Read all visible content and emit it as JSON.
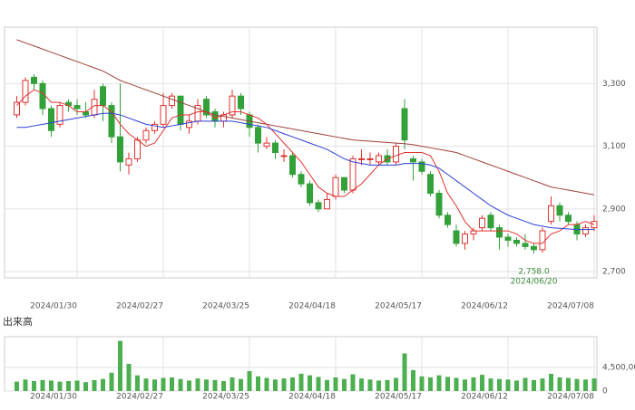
{
  "chart_data": [
    {
      "type": "candlestick",
      "categories": [
        null,
        null,
        null,
        null,
        null,
        null,
        null,
        "2024/01/30",
        null,
        null,
        null,
        null,
        null,
        null,
        null,
        null,
        null,
        "2024/02/27",
        null,
        null,
        null,
        null,
        null,
        null,
        null,
        null,
        null,
        "2024/03/25",
        null,
        null,
        null,
        null,
        null,
        null,
        null,
        null,
        null,
        "2024/04/18",
        null,
        null,
        null,
        null,
        null,
        null,
        null,
        null,
        null,
        "2024/05/17",
        null,
        null,
        null,
        null,
        null,
        null,
        null,
        null,
        null,
        "2024/06/12",
        null,
        null,
        null,
        null,
        null,
        null,
        null,
        null,
        null,
        "2024/07/08"
      ],
      "open": [
        3200,
        3240,
        3320,
        3300,
        3220,
        3170,
        3240,
        3230,
        3210,
        3200,
        3290,
        3230,
        3130,
        3040,
        3060,
        3120,
        3150,
        3170,
        3230,
        3260,
        3160,
        3180,
        3250,
        3210,
        3180,
        3200,
        3260,
        3200,
        3160,
        3100,
        3110,
        3070,
        3070,
        3010,
        2980,
        2920,
        2900,
        2940,
        3000,
        2960,
        3060,
        3060,
        3050,
        3070,
        3050,
        3220,
        3060,
        3050,
        3010,
        2950,
        2880,
        2830,
        2790,
        2820,
        2840,
        2880,
        2840,
        2810,
        2800,
        2790,
        2780,
        2770,
        2860,
        2910,
        2880,
        2850,
        2820,
        2840
      ],
      "high": [
        3260,
        3320,
        3330,
        3310,
        3230,
        3240,
        3250,
        3250,
        3240,
        3280,
        3300,
        3240,
        3300,
        3080,
        3130,
        3160,
        3180,
        3270,
        3270,
        3260,
        3200,
        3250,
        3260,
        3220,
        3210,
        3280,
        3270,
        3210,
        3170,
        3130,
        3120,
        3090,
        3080,
        3020,
        2990,
        2930,
        2950,
        3010,
        3000,
        3070,
        3090,
        3080,
        3080,
        3090,
        3110,
        3250,
        3070,
        3060,
        3020,
        2960,
        2890,
        2850,
        2830,
        2840,
        2880,
        2890,
        2850,
        2820,
        2810,
        2820,
        2790,
        2840,
        2940,
        2920,
        2890,
        2860,
        2850,
        2880
      ],
      "low": [
        3190,
        3230,
        3280,
        3200,
        3130,
        3160,
        3210,
        3200,
        3190,
        3190,
        3180,
        3110,
        3020,
        3010,
        3050,
        3110,
        3140,
        3160,
        3220,
        3150,
        3140,
        3170,
        3190,
        3160,
        3160,
        3190,
        3200,
        3130,
        3080,
        3090,
        3060,
        3050,
        3000,
        2970,
        2910,
        2890,
        2900,
        2930,
        2950,
        2950,
        3040,
        3040,
        3040,
        3040,
        3040,
        3090,
        2990,
        3010,
        2940,
        2870,
        2840,
        2780,
        2770,
        2800,
        2830,
        2830,
        2770,
        2780,
        2780,
        2770,
        2758,
        2760,
        2850,
        2860,
        2850,
        2800,
        2810,
        2830
      ],
      "close": [
        3240,
        3310,
        3300,
        3220,
        3150,
        3230,
        3230,
        3220,
        3200,
        3250,
        3230,
        3130,
        3050,
        3060,
        3120,
        3150,
        3170,
        3230,
        3260,
        3170,
        3180,
        3230,
        3200,
        3180,
        3200,
        3260,
        3220,
        3160,
        3110,
        3110,
        3080,
        3070,
        3010,
        2980,
        2920,
        2900,
        2930,
        3000,
        2960,
        3060,
        3060,
        3060,
        3070,
        3050,
        3100,
        3120,
        3050,
        3020,
        2950,
        2880,
        2850,
        2790,
        2820,
        2830,
        2870,
        2840,
        2810,
        2800,
        2790,
        2780,
        2770,
        2830,
        2910,
        2880,
        2860,
        2820,
        2840,
        2860
      ],
      "up_color": "#e0332f",
      "down_color": "#33a13a",
      "series": [
        {
          "color": "#e0332f",
          "values": [
            3230,
            3260,
            3280,
            3270,
            3240,
            3240,
            3230,
            3210,
            3210,
            3230,
            3230,
            3210,
            3170,
            3140,
            3120,
            3100,
            3110,
            3150,
            3190,
            3200,
            3200,
            3210,
            3210,
            3190,
            3200,
            3210,
            3210,
            3200,
            3190,
            3170,
            3140,
            3110,
            3080,
            3050,
            3010,
            2970,
            2950,
            2940,
            2940,
            2960,
            2980,
            3010,
            3040,
            3060,
            3070,
            3080,
            3080,
            3080,
            3070,
            3020,
            2950,
            2910,
            2860,
            2830,
            2830,
            2830,
            2830,
            2830,
            2820,
            2800,
            2790,
            2790,
            2820,
            2830,
            2850,
            2850,
            2860,
            2850
          ]
        },
        {
          "color": "#2d3fd6",
          "values": [
            3160,
            3160,
            3165,
            3170,
            3175,
            3180,
            3185,
            3190,
            3195,
            3200,
            3205,
            3205,
            3200,
            3190,
            3180,
            3170,
            3165,
            3160,
            3165,
            3170,
            3175,
            3180,
            3180,
            3180,
            3180,
            3180,
            3175,
            3170,
            3165,
            3160,
            3150,
            3140,
            3130,
            3120,
            3110,
            3100,
            3090,
            3075,
            3060,
            3050,
            3045,
            3040,
            3040,
            3040,
            3040,
            3045,
            3045,
            3045,
            3040,
            3030,
            3010,
            2990,
            2970,
            2950,
            2930,
            2910,
            2895,
            2880,
            2870,
            2860,
            2850,
            2845,
            2840,
            2838,
            2836,
            2834,
            2834,
            2835
          ]
        },
        {
          "color": "#a0403a",
          "values": [
            3440,
            3430,
            3420,
            3410,
            3400,
            3390,
            3380,
            3370,
            3360,
            3350,
            3340,
            3325,
            3310,
            3300,
            3290,
            3280,
            3270,
            3260,
            3250,
            3240,
            3230,
            3220,
            3210,
            3200,
            3195,
            3190,
            3185,
            3180,
            3175,
            3170,
            3165,
            3160,
            3155,
            3150,
            3145,
            3140,
            3135,
            3130,
            3125,
            3120,
            3118,
            3116,
            3114,
            3112,
            3110,
            3108,
            3105,
            3100,
            3095,
            3090,
            3085,
            3080,
            3070,
            3060,
            3050,
            3040,
            3030,
            3020,
            3010,
            3000,
            2990,
            2980,
            2970,
            2965,
            2960,
            2955,
            2950,
            2945
          ]
        }
      ],
      "annotation": {
        "value": 2758,
        "label": "2,758.0",
        "date": "2024/06/20"
      },
      "ylim": [
        2680,
        3480
      ],
      "yticks": [
        {
          "value": 2700,
          "label": "2,700"
        },
        {
          "value": 2900,
          "label": "2,900"
        },
        {
          "value": 3100,
          "label": "3,100"
        },
        {
          "value": 3300,
          "label": "3,300"
        }
      ],
      "grid": true
    },
    {
      "type": "bar",
      "title": "出来高",
      "color": "#4caf50",
      "values": [
        1800000,
        2200000,
        1900000,
        2100000,
        2000000,
        1800000,
        1900000,
        2000000,
        1700000,
        2100000,
        2300000,
        3500000,
        9600000,
        5200000,
        3000000,
        2400000,
        2200000,
        2500000,
        2600000,
        2300000,
        2000000,
        2400000,
        2200000,
        2100000,
        1900000,
        2600000,
        2300000,
        3800000,
        2800000,
        2500000,
        2200000,
        2400000,
        2600000,
        3300000,
        3000000,
        2700000,
        2100000,
        2600000,
        2300000,
        3200000,
        2400000,
        2200000,
        2000000,
        2100000,
        2500000,
        7200000,
        4000000,
        2800000,
        2600000,
        3000000,
        2700000,
        2500000,
        2200000,
        2600000,
        3100000,
        2400000,
        2300000,
        2200000,
        2000000,
        2500000,
        2100000,
        2400000,
        3300000,
        2600000,
        2500000,
        2300000,
        2200000,
        2400000
      ],
      "ylim": [
        0,
        10400000
      ],
      "yticks": [
        0,
        {
          "value": 4500000,
          "label": "4,500,000"
        }
      ],
      "grid": true
    }
  ]
}
